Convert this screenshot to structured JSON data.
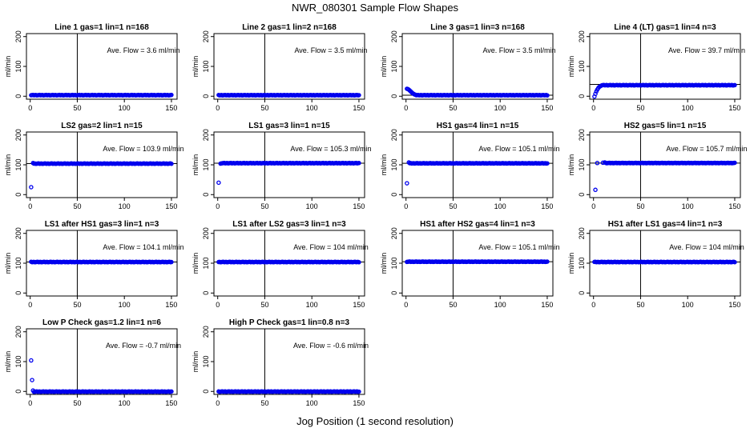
{
  "figure": {
    "title": "NWR_080301  Sample Flow Shapes",
    "xlabel": "Jog Position (1 second resolution)"
  },
  "chart_data": [
    {
      "type": "scatter",
      "title": "Line 1 gas=1 lin=1 n=168",
      "ylabel": "ml/min",
      "annotation": "Ave. Flow =  3.6  ml/min",
      "x_range": [
        0,
        150
      ],
      "xticks": [
        0,
        50,
        100,
        150
      ],
      "ylim": [
        -10,
        210
      ],
      "yticks": [
        0,
        100,
        200
      ],
      "vline": 50,
      "hlines": [],
      "series": [
        {
          "start": [],
          "level": 3.6,
          "x_end": 150
        }
      ]
    },
    {
      "type": "scatter",
      "title": "Line 2 gas=1 lin=2 n=168",
      "ylabel": "ml/min",
      "annotation": "Ave. Flow =  3.5  ml/min",
      "x_range": [
        0,
        150
      ],
      "xticks": [
        0,
        50,
        100,
        150
      ],
      "ylim": [
        -10,
        210
      ],
      "yticks": [
        0,
        100,
        200
      ],
      "vline": 50,
      "hlines": [],
      "series": [
        {
          "start": [],
          "level": 3.5,
          "x_end": 150
        }
      ]
    },
    {
      "type": "scatter",
      "title": "Line 3 gas=1 lin=3 n=168",
      "ylabel": "ml/min",
      "annotation": "Ave. Flow =  3.5  ml/min",
      "x_range": [
        0,
        150
      ],
      "xticks": [
        0,
        50,
        100,
        150
      ],
      "ylim": [
        -10,
        210
      ],
      "yticks": [
        0,
        100,
        200
      ],
      "vline": 50,
      "hlines": [
        3.5
      ],
      "series": [
        {
          "start": [
            [
              1,
              25
            ],
            [
              2,
              24
            ],
            [
              3,
              22
            ],
            [
              4,
              19
            ],
            [
              5,
              16
            ],
            [
              6,
              13
            ],
            [
              7,
              10
            ],
            [
              8,
              8
            ],
            [
              9,
              6
            ],
            [
              10,
              5
            ]
          ],
          "level": 3.5,
          "x_end": 150
        }
      ]
    },
    {
      "type": "scatter",
      "title": "Line 4 (LT) gas=1 lin=4 n=3",
      "ylabel": "ml/min",
      "annotation": "Ave. Flow =  39.7  ml/min",
      "x_range": [
        0,
        150
      ],
      "xticks": [
        0,
        50,
        100,
        150
      ],
      "ylim": [
        -10,
        210
      ],
      "yticks": [
        0,
        100,
        200
      ],
      "vline": 50,
      "hlines": [
        39.7
      ],
      "series": [
        {
          "start": [
            [
              1,
              -1
            ],
            [
              2,
              8
            ],
            [
              3,
              16
            ],
            [
              4,
              22
            ],
            [
              5,
              27
            ],
            [
              6,
              31
            ],
            [
              7,
              33
            ],
            [
              8,
              35
            ]
          ],
          "level": 37,
          "x_end": 150
        }
      ]
    },
    {
      "type": "scatter",
      "title": "LS2 gas=2 lin=1 n=15",
      "ylabel": "ml/min",
      "annotation": "Ave. Flow =  103.9  ml/min",
      "x_range": [
        0,
        150
      ],
      "xticks": [
        0,
        50,
        100,
        150
      ],
      "ylim": [
        -10,
        210
      ],
      "yticks": [
        0,
        100,
        200
      ],
      "vline": 50,
      "hlines": [
        103.9
      ],
      "series": [
        {
          "start": [
            [
              1,
              25
            ],
            [
              3,
              106
            ]
          ],
          "level": 104,
          "x_end": 150
        }
      ]
    },
    {
      "type": "scatter",
      "title": "LS1 gas=3 lin=1 n=15",
      "ylabel": "ml/min",
      "annotation": "Ave. Flow =  105.3  ml/min",
      "x_range": [
        0,
        150
      ],
      "xticks": [
        0,
        50,
        100,
        150
      ],
      "ylim": [
        -10,
        210
      ],
      "yticks": [
        0,
        100,
        200
      ],
      "vline": 50,
      "hlines": [
        105.3
      ],
      "series": [
        {
          "start": [
            [
              1,
              40
            ],
            [
              3,
              104
            ]
          ],
          "level": 105.5,
          "x_end": 150
        }
      ]
    },
    {
      "type": "scatter",
      "title": "HS1 gas=4 lin=1 n=15",
      "ylabel": "ml/min",
      "annotation": "Ave. Flow =  105.1  ml/min",
      "x_range": [
        0,
        150
      ],
      "xticks": [
        0,
        50,
        100,
        150
      ],
      "ylim": [
        -10,
        210
      ],
      "yticks": [
        0,
        100,
        200
      ],
      "vline": 50,
      "hlines": [
        105.1
      ],
      "series": [
        {
          "start": [
            [
              1,
              38
            ],
            [
              3,
              108
            ]
          ],
          "level": 105,
          "x_end": 150
        }
      ]
    },
    {
      "type": "scatter",
      "title": "HS2 gas=5 lin=1 n=15",
      "ylabel": "ml/min",
      "annotation": "Ave. Flow =  105.7  ml/min",
      "x_range": [
        0,
        150
      ],
      "xticks": [
        0,
        50,
        100,
        150
      ],
      "ylim": [
        -10,
        210
      ],
      "yticks": [
        0,
        100,
        200
      ],
      "vline": 50,
      "hlines": [
        105.7
      ],
      "series": [
        {
          "start": [
            [
              2,
              16
            ],
            [
              4,
              106
            ],
            [
              10,
              107
            ],
            [
              12,
              108
            ]
          ],
          "level": 106,
          "x_end": 150
        }
      ]
    },
    {
      "type": "scatter",
      "title": "LS1 after HS1 gas=3 lin=1 n=3",
      "ylabel": "ml/min",
      "annotation": "Ave. Flow =  104.1  ml/min",
      "x_range": [
        0,
        150
      ],
      "xticks": [
        0,
        50,
        100,
        150
      ],
      "ylim": [
        -10,
        210
      ],
      "yticks": [
        0,
        100,
        200
      ],
      "vline": 50,
      "hlines": [
        104.1
      ],
      "series": [
        {
          "start": [],
          "level": 104,
          "x_end": 150
        }
      ]
    },
    {
      "type": "scatter",
      "title": "LS1 after LS2 gas=3 lin=1 n=3",
      "ylabel": "ml/min",
      "annotation": "Ave. Flow =  104  ml/min",
      "x_range": [
        0,
        150
      ],
      "xticks": [
        0,
        50,
        100,
        150
      ],
      "ylim": [
        -10,
        210
      ],
      "yticks": [
        0,
        100,
        200
      ],
      "vline": 50,
      "hlines": [
        104
      ],
      "series": [
        {
          "start": [],
          "level": 104,
          "x_end": 150
        }
      ]
    },
    {
      "type": "scatter",
      "title": "HS1 after HS2 gas=4 lin=1 n=3",
      "ylabel": "ml/min",
      "annotation": "Ave. Flow =  105.1  ml/min",
      "x_range": [
        0,
        150
      ],
      "xticks": [
        0,
        50,
        100,
        150
      ],
      "ylim": [
        -10,
        210
      ],
      "yticks": [
        0,
        100,
        200
      ],
      "vline": 50,
      "hlines": [
        105.1
      ],
      "series": [
        {
          "start": [],
          "level": 105,
          "x_end": 150
        }
      ]
    },
    {
      "type": "scatter",
      "title": "HS1 after LS1 gas=4 lin=1 n=3",
      "ylabel": "ml/min",
      "annotation": "Ave. Flow =  104  ml/min",
      "x_range": [
        0,
        150
      ],
      "xticks": [
        0,
        50,
        100,
        150
      ],
      "ylim": [
        -10,
        210
      ],
      "yticks": [
        0,
        100,
        200
      ],
      "vline": 50,
      "hlines": [
        104
      ],
      "series": [
        {
          "start": [],
          "level": 104,
          "x_end": 150
        }
      ]
    },
    {
      "type": "scatter",
      "title": "Low P Check gas=1.2 lin=1 n=6",
      "ylabel": "ml/min",
      "annotation": "Ave. Flow =  -0.7  ml/min",
      "x_range": [
        0,
        150
      ],
      "xticks": [
        0,
        50,
        100,
        150
      ],
      "ylim": [
        -10,
        210
      ],
      "yticks": [
        0,
        100,
        200
      ],
      "vline": 50,
      "hlines": [],
      "series": [
        {
          "start": [
            [
              1,
              104
            ],
            [
              2,
              38
            ],
            [
              3,
              3
            ]
          ],
          "level": -0.7,
          "x_end": 150
        }
      ]
    },
    {
      "type": "scatter",
      "title": "High P Check gas=1 lin=0.8 n=3",
      "ylabel": "ml/min",
      "annotation": "Ave. Flow =  -0.6  ml/min",
      "x_range": [
        0,
        150
      ],
      "xticks": [
        0,
        50,
        100,
        150
      ],
      "ylim": [
        -10,
        210
      ],
      "yticks": [
        0,
        100,
        200
      ],
      "vline": 50,
      "hlines": [],
      "series": [
        {
          "start": [],
          "level": -0.6,
          "x_end": 150
        }
      ]
    }
  ]
}
